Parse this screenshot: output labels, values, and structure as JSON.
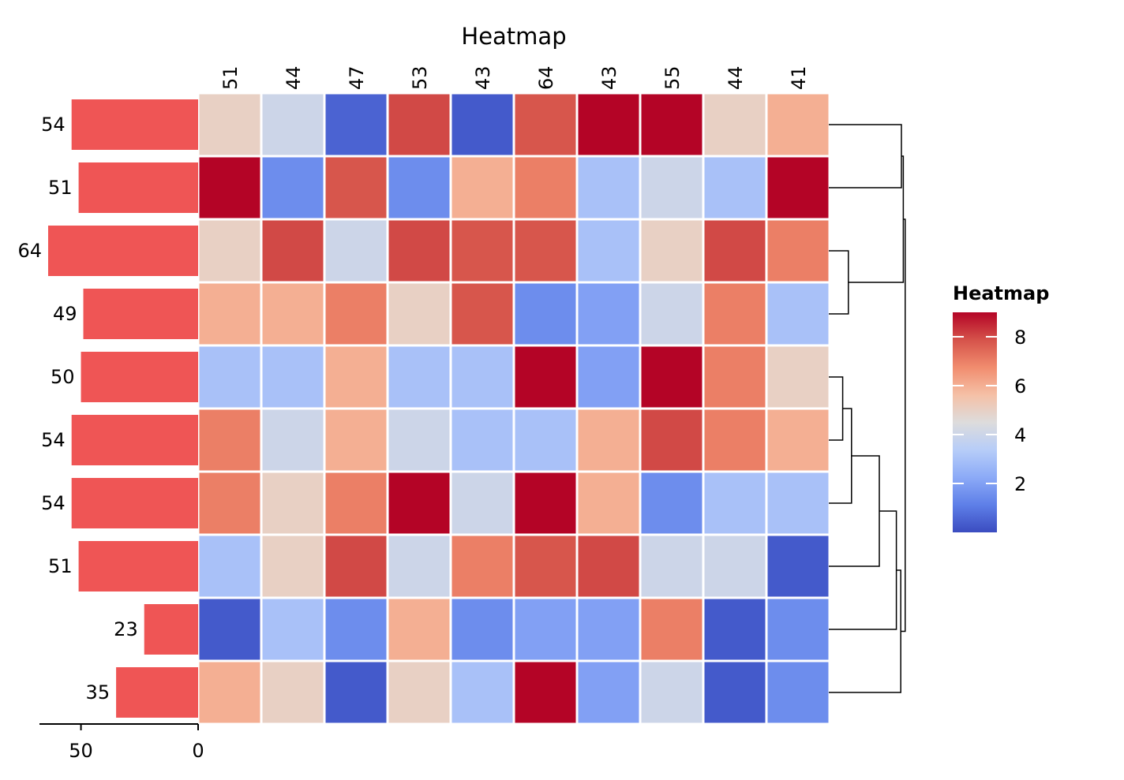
{
  "chart_data": {
    "type": "heatmap",
    "title": "Heatmap",
    "column_labels": [
      "51",
      "44",
      "47",
      "53",
      "43",
      "64",
      "43",
      "55",
      "44",
      "41"
    ],
    "row_labels": [
      "54",
      "51",
      "64",
      "49",
      "50",
      "54",
      "54",
      "51",
      "23",
      "35"
    ],
    "values": [
      [
        5.0,
        4.0,
        0.5,
        8.0,
        0.3,
        7.8,
        9.0,
        9.0,
        5.0,
        6.0
      ],
      [
        9.0,
        1.5,
        7.8,
        1.5,
        6.0,
        7.0,
        3.0,
        4.0,
        3.0,
        9.0
      ],
      [
        5.0,
        8.0,
        4.0,
        8.0,
        7.8,
        7.8,
        3.0,
        5.0,
        8.0,
        7.0
      ],
      [
        6.0,
        6.0,
        7.0,
        5.0,
        7.8,
        1.5,
        2.0,
        4.0,
        7.0,
        3.0
      ],
      [
        3.0,
        3.0,
        6.0,
        3.0,
        3.0,
        9.0,
        2.0,
        9.0,
        7.0,
        5.0
      ],
      [
        7.0,
        4.0,
        6.0,
        4.0,
        3.0,
        3.0,
        6.0,
        8.0,
        7.0,
        6.0
      ],
      [
        7.0,
        5.0,
        7.0,
        9.0,
        4.0,
        9.0,
        6.0,
        1.5,
        3.0,
        3.0
      ],
      [
        3.0,
        5.0,
        8.0,
        4.0,
        7.0,
        7.8,
        8.0,
        4.0,
        4.0,
        0.3
      ],
      [
        0.3,
        3.0,
        1.5,
        6.0,
        1.5,
        2.0,
        2.0,
        7.0,
        0.3,
        1.5
      ],
      [
        6.0,
        5.0,
        0.3,
        5.0,
        3.0,
        9.0,
        2.0,
        4.0,
        0.3,
        1.5
      ]
    ],
    "row_bar_values": [
      54,
      51,
      64,
      49,
      50,
      54,
      54,
      51,
      23,
      35
    ],
    "row_bar_axis": {
      "ticks": [
        50,
        0
      ],
      "range": [
        64,
        0
      ]
    },
    "row_bar_color": "#ef5555",
    "colorbar": {
      "title": "Heatmap",
      "ticks": [
        2,
        4,
        6,
        8
      ],
      "range": [
        0,
        9
      ],
      "colormap": "coolwarm"
    },
    "row_dendrogram": {
      "leaf_order": [
        0,
        1,
        2,
        3,
        4,
        5,
        6,
        7,
        8,
        9
      ],
      "merges": [
        [
          0,
          1,
          0.115
        ],
        [
          2,
          3,
          0.031
        ],
        [
          10,
          11,
          0.118
        ],
        [
          4,
          5,
          0.022
        ],
        [
          13,
          6,
          0.036
        ],
        [
          14,
          7,
          0.08
        ],
        [
          15,
          8,
          0.107
        ],
        [
          16,
          9,
          0.114
        ],
        [
          12,
          17,
          0.121
        ]
      ]
    }
  }
}
